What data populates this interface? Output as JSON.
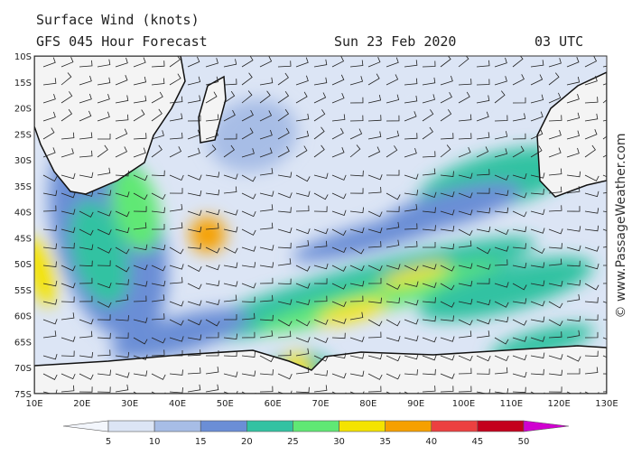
{
  "header": {
    "title": "Surface Wind (knots)",
    "model": "GFS 045 Hour Forecast",
    "date": "Sun 23 Feb 2020",
    "time": "03 UTC"
  },
  "lat_labels": [
    "10S",
    "15S",
    "20S",
    "25S",
    "30S",
    "35S",
    "40S",
    "45S",
    "50S",
    "55S",
    "60S",
    "65S",
    "70S",
    "75S"
  ],
  "lon_labels": [
    "10E",
    "20E",
    "30E",
    "40E",
    "50E",
    "60E",
    "70E",
    "80E",
    "90E",
    "100E",
    "110E",
    "120E",
    "130E"
  ],
  "legend": {
    "ticks": [
      5,
      10,
      15,
      20,
      25,
      30,
      35,
      40,
      45,
      50
    ],
    "colors": [
      "#f3f6fc",
      "#dce5f5",
      "#a7bde6",
      "#6b8ed6",
      "#33c2a2",
      "#60e874",
      "#f4e300",
      "#f6a000",
      "#ec4040",
      "#c4001c",
      "#d000d0"
    ]
  },
  "watermark": "© www.PassageWeather.com"
}
